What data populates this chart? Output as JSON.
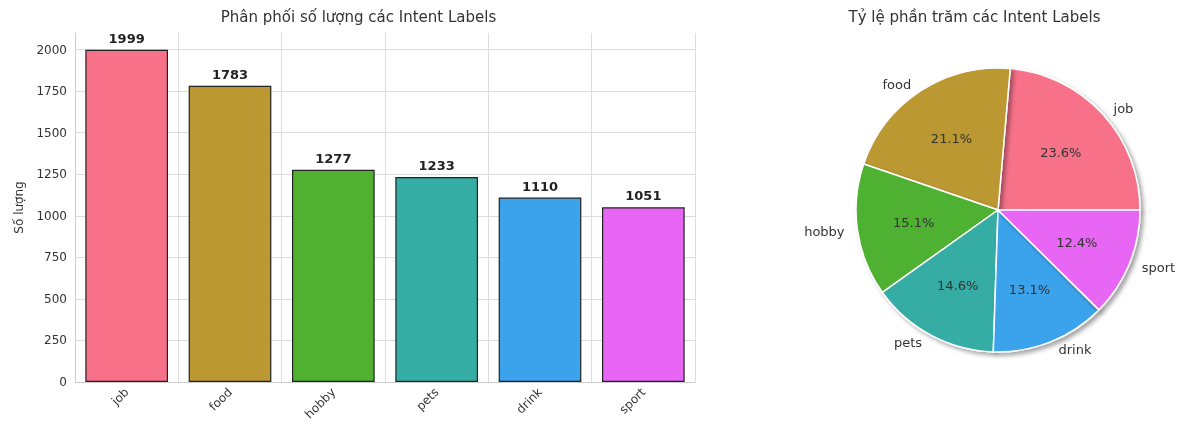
{
  "chart_data": [
    {
      "type": "bar",
      "title": "Phân phối số lượng các Intent Labels",
      "ylabel": "Số lượng",
      "categories": [
        "job",
        "food",
        "hobby",
        "pets",
        "drink",
        "sport"
      ],
      "values": [
        1999,
        1783,
        1277,
        1233,
        1110,
        1051
      ],
      "colors": [
        "#f77189",
        "#bb9832",
        "#50b131",
        "#36ada4",
        "#3ba3ec",
        "#e866f4"
      ],
      "ylim": [
        0,
        2100
      ],
      "yticks": [
        0,
        250,
        500,
        750,
        1000,
        1250,
        1500,
        1750,
        2000
      ],
      "grid": true,
      "data_labels": true
    },
    {
      "type": "pie",
      "title": "Tỷ lệ phần trăm các Intent Labels",
      "categories": [
        "job",
        "food",
        "hobby",
        "pets",
        "drink",
        "sport"
      ],
      "values": [
        23.6,
        21.1,
        15.1,
        14.6,
        13.1,
        12.4
      ],
      "value_labels": [
        "23.6%",
        "21.1%",
        "15.1%",
        "14.6%",
        "13.1%",
        "12.4%"
      ],
      "colors": [
        "#f77189",
        "#bb9832",
        "#50b131",
        "#36ada4",
        "#3ba3ec",
        "#e866f4"
      ]
    }
  ]
}
